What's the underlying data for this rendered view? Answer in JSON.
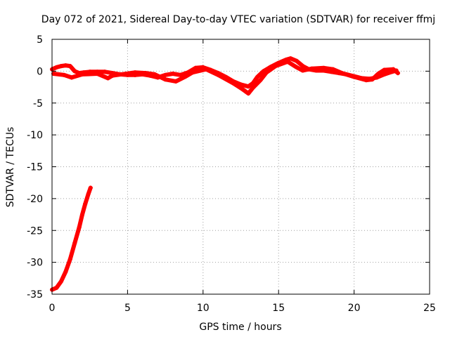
{
  "chart_data": {
    "type": "scatter",
    "title": "Day 072 of 2021, Sidereal Day-to-day VTEC variation (SDTVAR) for receiver ffmj",
    "xlabel": "GPS time / hours",
    "ylabel": "SDTVAR / TECUs",
    "xlim": [
      0,
      25
    ],
    "ylim": [
      -35,
      5
    ],
    "xticks": [
      0,
      5,
      10,
      15,
      20,
      25
    ],
    "yticks": [
      5,
      0,
      -5,
      -10,
      -15,
      -20,
      -25,
      -30,
      -35
    ],
    "xtick_labels": [
      "0",
      "5",
      "10",
      "15",
      "20",
      "25"
    ],
    "ytick_labels": [
      "5",
      "0",
      "-5",
      "-10",
      "-15",
      "-20",
      "-25",
      "-30",
      "-35"
    ],
    "grid": true,
    "series_color": "#ff0000",
    "series": [
      {
        "name": "SDTVAR main trace",
        "points": [
          [
            0.0,
            0.3
          ],
          [
            0.3,
            0.6
          ],
          [
            0.6,
            0.8
          ],
          [
            0.9,
            0.9
          ],
          [
            1.2,
            0.8
          ],
          [
            1.5,
            0.0
          ],
          [
            1.8,
            -0.3
          ],
          [
            2.1,
            -0.2
          ],
          [
            2.5,
            -0.1
          ],
          [
            3.0,
            -0.1
          ],
          [
            3.5,
            -0.1
          ],
          [
            4.0,
            -0.3
          ],
          [
            4.5,
            -0.5
          ],
          [
            5.0,
            -0.6
          ],
          [
            5.5,
            -0.6
          ],
          [
            6.0,
            -0.5
          ],
          [
            6.5,
            -0.7
          ],
          [
            7.0,
            -1.0
          ],
          [
            7.5,
            -0.6
          ],
          [
            8.0,
            -0.4
          ],
          [
            8.5,
            -0.6
          ],
          [
            9.0,
            -0.2
          ],
          [
            9.5,
            0.5
          ],
          [
            10.0,
            0.6
          ],
          [
            10.5,
            0.2
          ],
          [
            11.0,
            -0.3
          ],
          [
            11.5,
            -0.9
          ],
          [
            12.0,
            -1.6
          ],
          [
            12.5,
            -2.1
          ],
          [
            13.0,
            -2.4
          ],
          [
            13.3,
            -1.9
          ],
          [
            13.6,
            -0.9
          ],
          [
            14.0,
            0.0
          ],
          [
            14.5,
            0.7
          ],
          [
            15.0,
            1.3
          ],
          [
            15.5,
            1.8
          ],
          [
            15.8,
            2.0
          ],
          [
            16.2,
            1.6
          ],
          [
            16.6,
            0.8
          ],
          [
            17.0,
            0.3
          ],
          [
            17.5,
            0.1
          ],
          [
            18.0,
            0.1
          ],
          [
            18.5,
            -0.1
          ],
          [
            19.0,
            -0.3
          ],
          [
            19.5,
            -0.5
          ],
          [
            20.0,
            -0.8
          ],
          [
            20.5,
            -1.1
          ],
          [
            21.0,
            -1.2
          ],
          [
            21.5,
            -1.0
          ],
          [
            22.0,
            -0.5
          ],
          [
            22.5,
            -0.1
          ],
          [
            22.8,
            0.1
          ]
        ]
      },
      {
        "name": "SDTVAR secondary trace",
        "points": [
          [
            0.1,
            -0.4
          ],
          [
            0.8,
            -0.6
          ],
          [
            1.3,
            -1.0
          ],
          [
            2.0,
            -0.5
          ],
          [
            3.0,
            -0.4
          ],
          [
            3.7,
            -1.1
          ],
          [
            4.0,
            -0.7
          ],
          [
            5.5,
            -0.2
          ],
          [
            6.2,
            -0.3
          ],
          [
            6.8,
            -0.5
          ],
          [
            7.5,
            -1.3
          ],
          [
            8.2,
            -1.6
          ],
          [
            8.8,
            -0.9
          ],
          [
            9.3,
            -0.2
          ],
          [
            10.2,
            0.3
          ],
          [
            11.0,
            -0.6
          ],
          [
            12.0,
            -1.9
          ],
          [
            12.6,
            -2.8
          ],
          [
            13.0,
            -3.5
          ],
          [
            13.3,
            -2.6
          ],
          [
            13.8,
            -1.4
          ],
          [
            14.2,
            -0.2
          ],
          [
            14.8,
            0.8
          ],
          [
            15.6,
            1.5
          ],
          [
            16.2,
            0.6
          ],
          [
            16.6,
            0.1
          ],
          [
            17.2,
            0.4
          ],
          [
            18.0,
            0.5
          ],
          [
            18.6,
            0.3
          ],
          [
            19.2,
            -0.3
          ],
          [
            20.0,
            -0.9
          ],
          [
            20.8,
            -1.4
          ],
          [
            21.2,
            -1.3
          ],
          [
            21.6,
            -0.4
          ],
          [
            22.0,
            0.2
          ],
          [
            22.6,
            0.3
          ],
          [
            22.9,
            -0.3
          ]
        ]
      },
      {
        "name": "SDTVAR initial drop",
        "points": [
          [
            0.0,
            -34.3
          ],
          [
            0.3,
            -34.0
          ],
          [
            0.6,
            -33.0
          ],
          [
            0.9,
            -31.5
          ],
          [
            1.2,
            -29.5
          ],
          [
            1.5,
            -27.0
          ],
          [
            1.8,
            -24.5
          ],
          [
            2.0,
            -22.5
          ],
          [
            2.2,
            -20.8
          ],
          [
            2.4,
            -19.3
          ],
          [
            2.55,
            -18.3
          ]
        ]
      }
    ]
  }
}
